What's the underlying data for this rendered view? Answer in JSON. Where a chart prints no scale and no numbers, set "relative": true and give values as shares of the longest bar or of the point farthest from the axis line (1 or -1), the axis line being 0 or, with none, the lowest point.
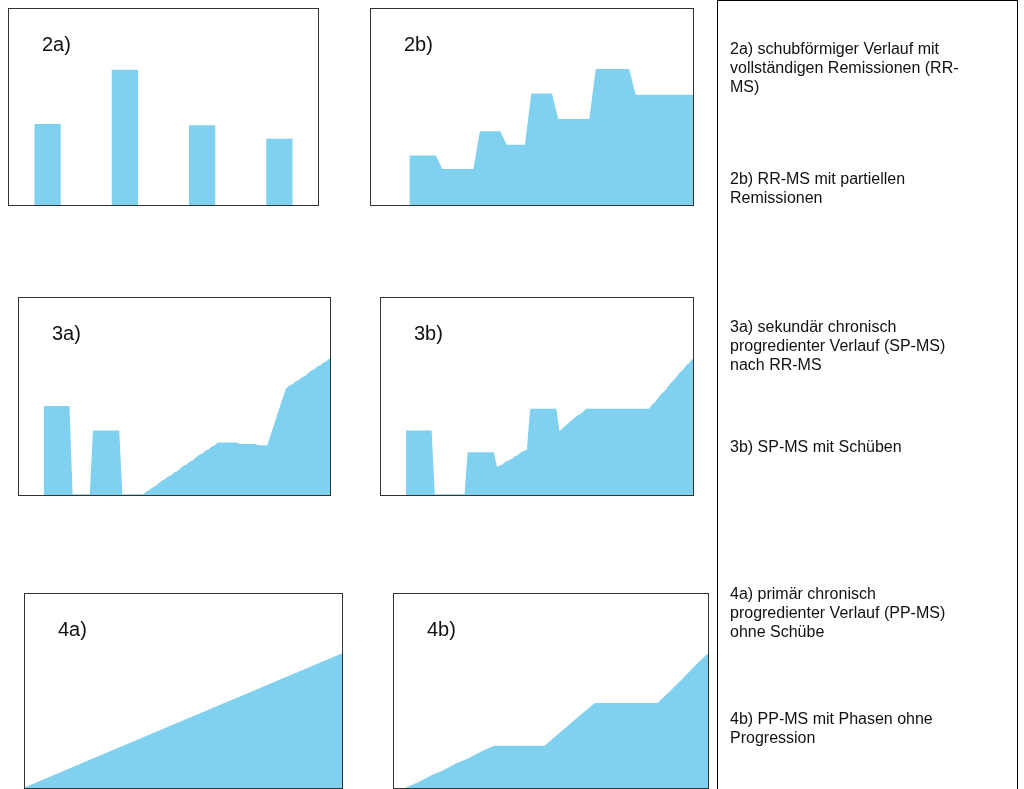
{
  "chart_data": [
    {
      "type": "bar",
      "title": "2a)",
      "relative": true,
      "tick_labels": false,
      "categories": [
        null,
        null,
        null,
        null
      ],
      "values": [
        0.6,
        1,
        0.59,
        0.49
      ],
      "color": "#80d0f0"
    },
    {
      "type": "area",
      "title": "2b)",
      "relative": true,
      "tick_labels": false,
      "categories": [
        null,
        null,
        null,
        null,
        null,
        null,
        null,
        null,
        null,
        null,
        null,
        null,
        null,
        null,
        null,
        null,
        null,
        null,
        null,
        null,
        null,
        null,
        null,
        null,
        null,
        null,
        null,
        null,
        null,
        null,
        null,
        null,
        null,
        null,
        null,
        null,
        null,
        null,
        null,
        null,
        null,
        null,
        null,
        null,
        null,
        null,
        null,
        null,
        null,
        null,
        null
      ],
      "color": "#80d0f0",
      "values": [
        null,
        null,
        null,
        null,
        null,
        null,
        0.36,
        0.36,
        0.36,
        0.36,
        0.36,
        0.26,
        0.26,
        0.26,
        0.26,
        0.26,
        0.26,
        0.54,
        0.54,
        0.54,
        0.54,
        0.44,
        0.44,
        0.44,
        0.44,
        0.82,
        0.82,
        0.82,
        0.82,
        0.63,
        0.63,
        0.63,
        0.63,
        0.63,
        0.63,
        1,
        1,
        1,
        1,
        1,
        1,
        0.81,
        0.81,
        0.81,
        0.81,
        0.81,
        0.81,
        0.81,
        0.81,
        0.81,
        0.81
      ]
    },
    {
      "type": "area",
      "title": "3a)",
      "relative": true,
      "tick_labels": false,
      "categories": [
        null,
        null,
        null,
        null,
        null,
        null,
        null,
        null,
        null,
        null,
        null,
        null,
        null,
        null,
        null,
        null,
        null,
        null,
        null,
        null,
        null,
        null,
        null,
        null,
        null,
        null,
        null,
        null,
        null,
        null,
        null,
        null,
        null,
        null,
        null,
        null,
        null,
        null,
        null,
        null,
        null,
        null,
        null,
        null,
        null,
        null,
        null,
        null,
        null,
        null,
        null,
        null,
        null,
        null,
        null,
        null,
        null,
        null,
        null,
        null,
        null,
        null,
        null,
        null,
        null,
        null,
        null,
        null,
        null,
        null,
        null,
        null,
        null,
        null,
        null,
        null,
        null,
        null,
        null,
        null,
        null,
        null,
        null,
        null,
        null,
        null,
        null,
        null,
        null,
        null,
        null,
        null,
        null,
        null,
        null,
        null,
        null,
        null,
        null,
        null,
        null
      ],
      "color": "#80d0f0",
      "values": [
        null,
        null,
        null,
        null,
        null,
        null,
        null,
        null,
        0.65,
        0.65,
        0.65,
        0.65,
        0.65,
        0.65,
        0.65,
        0.65,
        0.65,
        0,
        0,
        0,
        0,
        0,
        0,
        0,
        0.47,
        0.47,
        0.47,
        0.47,
        0.47,
        0.47,
        0.47,
        0.47,
        0.47,
        0,
        0,
        0,
        0,
        0,
        0,
        0,
        0,
        0.02,
        0.03,
        0.05,
        0.06,
        0.08,
        0.1,
        0.11,
        0.13,
        0.14,
        0.16,
        0.17,
        0.19,
        0.21,
        0.22,
        0.24,
        0.25,
        0.27,
        0.29,
        0.3,
        0.32,
        0.33,
        0.35,
        0.36,
        0.38,
        0.38,
        0.38,
        0.38,
        0.38,
        0.38,
        0.38,
        0.37,
        0.37,
        0.37,
        0.37,
        0.37,
        0.37,
        0.36,
        0.36,
        0.36,
        0.36,
        0.43,
        0.5,
        0.57,
        0.64,
        0.71,
        0.78,
        0.8,
        0.81,
        0.83,
        0.84,
        0.86,
        0.87,
        0.89,
        0.91,
        0.92,
        0.94,
        0.95,
        0.97,
        0.98,
        1
      ]
    },
    {
      "type": "area",
      "title": "3b)",
      "relative": true,
      "tick_labels": false,
      "categories": [
        null,
        null,
        null,
        null,
        null,
        null,
        null,
        null,
        null,
        null,
        null,
        null,
        null,
        null,
        null,
        null,
        null,
        null,
        null,
        null,
        null,
        null,
        null,
        null,
        null,
        null,
        null,
        null,
        null,
        null,
        null,
        null,
        null,
        null,
        null,
        null,
        null,
        null,
        null,
        null,
        null,
        null,
        null,
        null,
        null,
        null,
        null,
        null,
        null,
        null,
        null,
        null,
        null,
        null,
        null,
        null,
        null,
        null,
        null,
        null,
        null,
        null,
        null,
        null,
        null,
        null,
        null,
        null,
        null,
        null,
        null,
        null,
        null,
        null,
        null,
        null,
        null,
        null,
        null,
        null,
        null,
        null,
        null,
        null,
        null,
        null,
        null,
        null,
        null,
        null,
        null,
        null,
        null,
        null,
        null,
        null,
        null,
        null,
        null,
        null,
        null
      ],
      "color": "#80d0f0",
      "values": [
        null,
        null,
        null,
        null,
        null,
        null,
        null,
        null,
        0.47,
        0.47,
        0.47,
        0.47,
        0.47,
        0.47,
        0.47,
        0.47,
        0.47,
        0,
        0,
        0,
        0,
        0,
        0,
        0,
        0,
        0,
        0,
        0,
        0.31,
        0.31,
        0.31,
        0.31,
        0.31,
        0.31,
        0.31,
        0.31,
        0.31,
        0.2,
        0.21,
        0.22,
        0.24,
        0.25,
        0.26,
        0.28,
        0.29,
        0.31,
        0.32,
        0.33,
        0.63,
        0.63,
        0.63,
        0.63,
        0.63,
        0.63,
        0.63,
        0.63,
        0.63,
        0.46,
        0.48,
        0.5,
        0.52,
        0.54,
        0.56,
        0.58,
        0.59,
        0.61,
        0.63,
        0.63,
        0.63,
        0.63,
        0.63,
        0.63,
        0.63,
        0.63,
        0.63,
        0.63,
        0.63,
        0.63,
        0.63,
        0.63,
        0.63,
        0.63,
        0.63,
        0.63,
        0.63,
        0.63,
        0.63,
        0.66,
        0.68,
        0.71,
        0.74,
        0.76,
        0.79,
        0.82,
        0.84,
        0.87,
        0.9,
        0.92,
        0.95,
        0.97,
        1
      ]
    },
    {
      "type": "area",
      "title": "4a)",
      "relative": true,
      "tick_labels": false,
      "categories": [
        null,
        null,
        null,
        null,
        null,
        null
      ],
      "values": [
        0,
        0.2,
        0.4,
        0.6,
        0.8,
        1
      ],
      "color": "#80d0f0"
    },
    {
      "type": "area",
      "title": "4b)",
      "relative": true,
      "tick_labels": false,
      "categories": [
        null,
        null,
        null,
        null,
        null,
        null,
        null,
        null,
        null,
        null,
        null,
        null,
        null,
        null,
        null,
        null,
        null,
        null,
        null,
        null,
        null,
        null,
        null,
        null,
        null,
        null
      ],
      "values": [
        null,
        0,
        0.04,
        0.09,
        0.13,
        0.18,
        0.22,
        0.27,
        0.31,
        0.31,
        0.31,
        0.31,
        0.31,
        0.39,
        0.47,
        0.55,
        0.63,
        0.63,
        0.63,
        0.63,
        0.63,
        0.63,
        0.72,
        0.81,
        0.91,
        1
      ],
      "color": "#80d0f0"
    },
    {
      "type": "other",
      "annotations": [
        "2a) schubförmiger Verlauf mit vollständigen Remissionen (RR-MS)",
        "2b) RR-MS mit partiellen Remissionen",
        "3a) sekundär chronisch progredienter Verlauf (SP-MS) nach RR-MS",
        "3b) SP-MS mit Schüben",
        "4a) primär chronisch progredienter Verlauf (PP-MS) ohne Schübe",
        "4b) PP-MS mit Phasen ohne Progression"
      ]
    }
  ]
}
